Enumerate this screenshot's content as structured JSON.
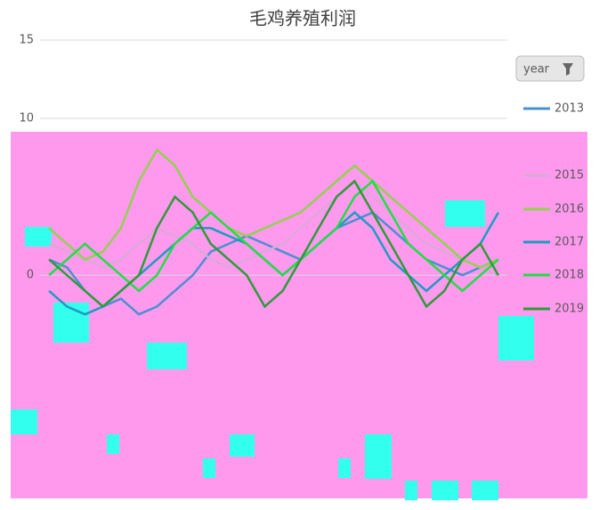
{
  "chart_data": {
    "type": "line",
    "title": "毛鸡养殖利润",
    "legend_title": "year",
    "categories": [
      null,
      null,
      null,
      null,
      null,
      null,
      null,
      null,
      null,
      null,
      null,
      null,
      null,
      null,
      null,
      null,
      null,
      null,
      null,
      null,
      null,
      null,
      null,
      null,
      null,
      null
    ],
    "ylim": [
      -3,
      15
    ],
    "yticks": [
      0,
      10,
      15
    ],
    "grid": true,
    "series": [
      {
        "name": "2013",
        "color": "#4a90d0",
        "values": [
          1,
          0.5,
          -1,
          -2,
          -1.5,
          -2.5,
          -2,
          -1,
          0,
          1.5,
          2,
          2.5,
          2,
          1.5,
          1,
          2,
          3,
          3.5,
          4,
          3,
          2,
          1,
          0.5,
          0,
          0.5,
          1
        ]
      },
      {
        "name": "2015",
        "color": "#d9a9d9",
        "values": [
          2,
          1.5,
          1,
          0.5,
          1,
          2,
          3,
          2.5,
          2,
          1,
          0.5,
          1,
          1.5,
          2,
          3,
          4,
          5,
          6,
          5,
          4,
          3,
          2,
          1.5,
          1,
          0.5,
          0
        ]
      },
      {
        "name": "2016",
        "color": "#92d050",
        "values": [
          3,
          2,
          1,
          1.5,
          3,
          6,
          8,
          7,
          5,
          4,
          3,
          2.5,
          3,
          3.5,
          4,
          5,
          6,
          7,
          6,
          5,
          4,
          3,
          2,
          1,
          0.5,
          1
        ]
      },
      {
        "name": "2017",
        "color": "#1e9bc0",
        "values": [
          -1,
          -2,
          -2.5,
          -2,
          -1,
          0,
          1,
          2,
          3,
          3,
          2.5,
          2,
          1,
          0,
          1,
          2,
          3,
          4,
          3,
          1,
          0,
          -1,
          0,
          1,
          2,
          4
        ]
      },
      {
        "name": "2018",
        "color": "#22dd44",
        "values": [
          0,
          1,
          2,
          1,
          0,
          -1,
          0,
          2,
          3,
          4,
          3,
          2,
          1,
          0,
          1,
          2,
          3,
          5,
          6,
          4,
          2,
          1,
          0,
          -1,
          0,
          1
        ]
      },
      {
        "name": "2019",
        "color": "#2f9a3a",
        "values": [
          1,
          0,
          -1,
          -2,
          -1,
          0,
          3,
          5,
          4,
          2,
          1,
          0,
          -2,
          -1,
          1,
          3,
          5,
          6,
          4,
          2,
          0,
          -2,
          -1,
          1,
          2,
          0
        ]
      }
    ]
  }
}
